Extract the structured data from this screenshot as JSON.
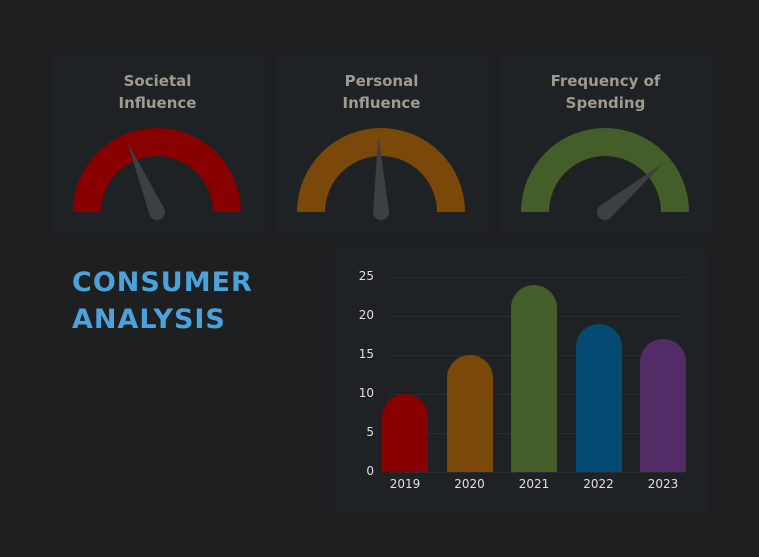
{
  "gauges": [
    {
      "title_line1": "Societal",
      "title_line2": "Influence",
      "color": "#880000",
      "needle_angle_deg": 113
    },
    {
      "title_line1": "Personal",
      "title_line2": "Influence",
      "color": "#7a4808",
      "needle_angle_deg": 92
    },
    {
      "title_line1": "Frequency of",
      "title_line2": "Spending",
      "color": "#445e2a",
      "needle_angle_deg": 40
    }
  ],
  "headline": {
    "line1": "CONSUMER",
    "line2": "ANALYSIS",
    "color": "#4aa3db"
  },
  "chart_data": {
    "type": "bar",
    "title": "",
    "xlabel": "",
    "ylabel": "",
    "categories": [
      "2019",
      "2020",
      "2021",
      "2022",
      "2023"
    ],
    "values": [
      10,
      15,
      24,
      19,
      17
    ],
    "colors": [
      "#880000",
      "#7a4808",
      "#445e2a",
      "#044a72",
      "#532b66"
    ],
    "yticks": [
      "0",
      "5",
      "10",
      "15",
      "20",
      "25"
    ],
    "ylim": [
      0,
      25
    ],
    "grid": true,
    "legend": "none"
  }
}
